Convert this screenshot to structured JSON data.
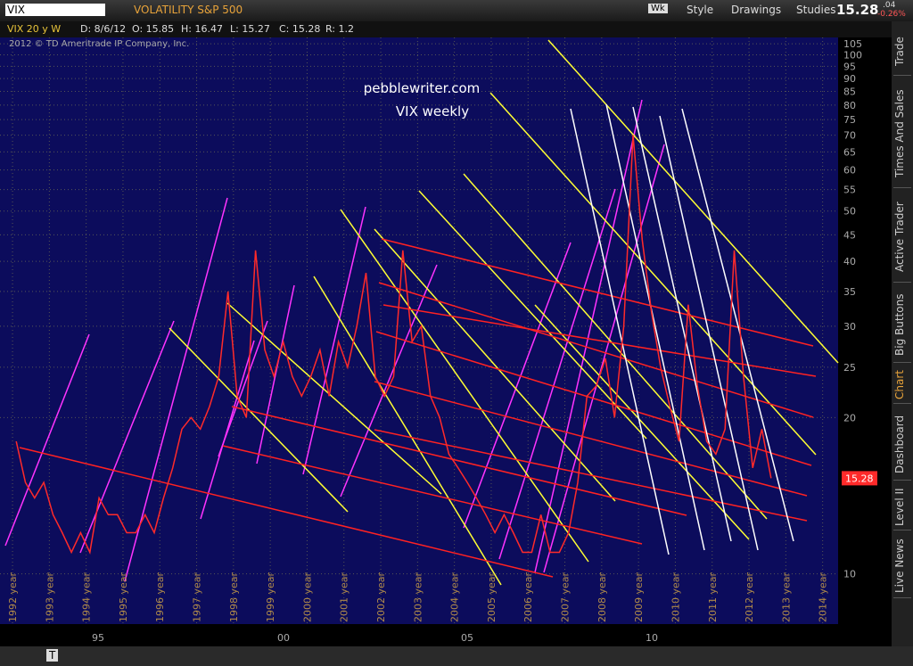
{
  "header": {
    "symbol": "VIX",
    "description": "VOLATILITY S&P 500",
    "menu": [
      "Style",
      "Drawings",
      "Studies"
    ],
    "last": "15.28",
    "change": ".04",
    "change_pct": "-0.26%",
    "wk": "Wk"
  },
  "info": {
    "study": "VIX 20 y W",
    "items": [
      "D: 8/6/12",
      "O: 15.85",
      "H: 16.47",
      "L: 15.27",
      "C: 15.28",
      "R: 1.2"
    ],
    "copyright": "2012 © TD Ameritrade IP Company, Inc."
  },
  "side_tabs": [
    "Trade",
    "Times And Sales",
    "Active Trader",
    "Big Buttons",
    "Chart",
    "Dashboard",
    "Level II",
    "Live News"
  ],
  "bottom_axis": {
    "labels": [
      "95",
      "00",
      "05",
      "10"
    ]
  },
  "bottom_toolbar": {
    "text_tool": "T"
  },
  "chart_data": {
    "type": "line",
    "annotation": [
      "pebblewriter.com",
      "VIX weekly"
    ],
    "log_y": true,
    "grid": true,
    "xlim": [
      1991.66,
      2014.42
    ],
    "xticks": [
      {
        "value": 1992,
        "label": "1992 year"
      },
      {
        "value": 1993,
        "label": "1993 year"
      },
      {
        "value": 1994,
        "label": "1994 year"
      },
      {
        "value": 1995,
        "label": "1995 year"
      },
      {
        "value": 1996,
        "label": "1996 year"
      },
      {
        "value": 1997,
        "label": "1997 year"
      },
      {
        "value": 1998,
        "label": "1998 year"
      },
      {
        "value": 1999,
        "label": "1999 year"
      },
      {
        "value": 2000,
        "label": "2000 year"
      },
      {
        "value": 2001,
        "label": "2001 year"
      },
      {
        "value": 2002,
        "label": "2002 year"
      },
      {
        "value": 2003,
        "label": "2003 year"
      },
      {
        "value": 2004,
        "label": "2004 year"
      },
      {
        "value": 2005,
        "label": "2005 year"
      },
      {
        "value": 2006,
        "label": "2006 year"
      },
      {
        "value": 2007,
        "label": "2007 year"
      },
      {
        "value": 2008,
        "label": "2008 year"
      },
      {
        "value": 2009,
        "label": "2009 year"
      },
      {
        "value": 2010,
        "label": "2010 year"
      },
      {
        "value": 2011,
        "label": "2011 year"
      },
      {
        "value": 2012,
        "label": "2012 year"
      },
      {
        "value": 2013,
        "label": "2013 year"
      },
      {
        "value": 2014,
        "label": "2014 year"
      }
    ],
    "ylim": [
      8,
      108
    ],
    "yticks": [
      10,
      20,
      25,
      30,
      35,
      40,
      45,
      50,
      55,
      60,
      65,
      70,
      75,
      80,
      85,
      90,
      95,
      100,
      105
    ],
    "x": [
      1992.1,
      1992.35,
      1992.6,
      1992.85,
      1993.1,
      1993.35,
      1993.6,
      1993.85,
      1994.1,
      1994.35,
      1994.6,
      1994.85,
      1995.1,
      1995.35,
      1995.6,
      1995.85,
      1996.1,
      1996.35,
      1996.6,
      1996.85,
      1997.1,
      1997.35,
      1997.6,
      1997.85,
      1998.1,
      1998.35,
      1998.6,
      1998.85,
      1999.1,
      1999.35,
      1999.6,
      1999.85,
      2000.1,
      2000.35,
      2000.6,
      2000.85,
      2001.1,
      2001.35,
      2001.6,
      2001.85,
      2002.1,
      2002.35,
      2002.6,
      2002.85,
      2003.1,
      2003.35,
      2003.6,
      2003.85,
      2004.1,
      2004.35,
      2004.6,
      2004.85,
      2005.1,
      2005.35,
      2005.6,
      2005.85,
      2006.1,
      2006.35,
      2006.6,
      2006.85,
      2007.1,
      2007.35,
      2007.6,
      2007.85,
      2008.1,
      2008.35,
      2008.6,
      2008.85,
      2009.1,
      2009.35,
      2009.6,
      2009.85,
      2010.1,
      2010.35,
      2010.6,
      2010.85,
      2011.1,
      2011.35,
      2011.6,
      2011.85,
      2012.1,
      2012.35,
      2012.6
    ],
    "series": [
      {
        "color": "#ff2a2a",
        "values": [
          18,
          15,
          14,
          15,
          13,
          12,
          11,
          12,
          11,
          14,
          13,
          13,
          12,
          12,
          13,
          12,
          14,
          16,
          19,
          20,
          19,
          21,
          24,
          35,
          22,
          20,
          42,
          27,
          24,
          28,
          24,
          22,
          24,
          27,
          22,
          28,
          25,
          30,
          38,
          24,
          22,
          24,
          42,
          28,
          30,
          22,
          20,
          17,
          16,
          15,
          14,
          13,
          12,
          13,
          12,
          11,
          11,
          13,
          11,
          11,
          12,
          15,
          22,
          23,
          26,
          20,
          30,
          70,
          44,
          32,
          25,
          21,
          18,
          33,
          23,
          18,
          17,
          19,
          42,
          24,
          16,
          19,
          15.28
        ]
      }
    ]
  }
}
